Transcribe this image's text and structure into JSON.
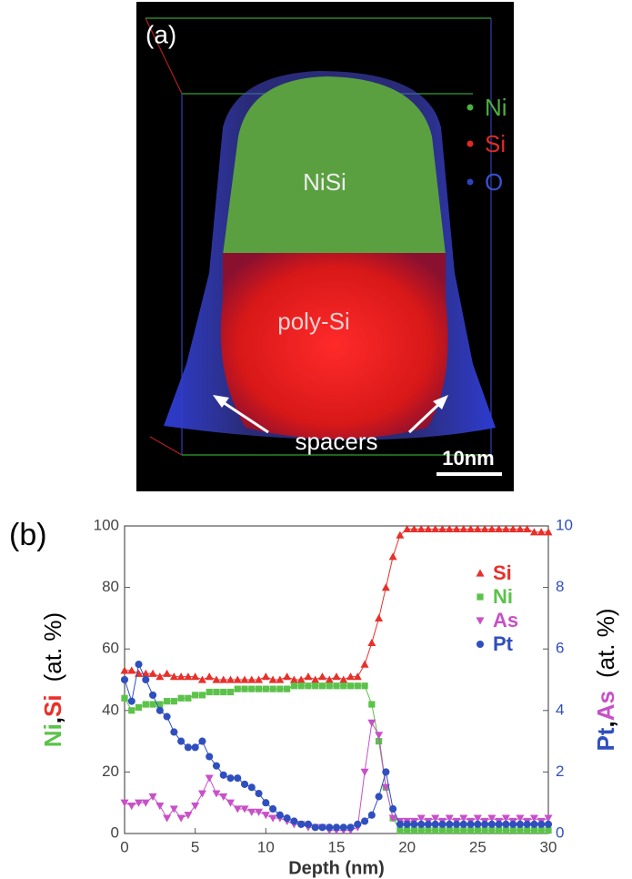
{
  "image_panel": {
    "label": "(a)",
    "legend": [
      "Ni",
      "Si",
      "O"
    ],
    "regions": [
      "NiSi",
      "poly-Si",
      "spacers"
    ],
    "scale_bar": "10nm"
  },
  "chart_data": {
    "type": "line",
    "panel_label": "(b)",
    "x_label": "Depth (nm)",
    "y_label": [
      {
        "text": "Ni",
        "color": "#5cc24a"
      },
      {
        "text": ",",
        "color": "#000000"
      },
      {
        "text": "Si",
        "color": "#e8302a"
      },
      {
        "text": "(at. %)",
        "color": "#000000"
      }
    ],
    "y2_label": [
      {
        "text": "Pt",
        "color": "#2f4fbf"
      },
      {
        "text": ",",
        "color": "#000000"
      },
      {
        "text": "As",
        "color": "#c850c8"
      },
      {
        "text": "(at. %)",
        "color": "#000000"
      }
    ],
    "xlim": [
      0,
      30
    ],
    "xticks": [
      0,
      5,
      10,
      15,
      20,
      25,
      30
    ],
    "ylim": [
      0,
      100
    ],
    "yticks": [
      0,
      20,
      40,
      60,
      80,
      100
    ],
    "y2lim": [
      0,
      10
    ],
    "y2ticks": [
      0,
      2,
      4,
      6,
      8,
      10
    ],
    "y2_tick_color": "#2f4fbf",
    "legend": "upper right",
    "x": [
      0,
      0.5,
      1,
      1.5,
      2,
      2.5,
      3,
      3.5,
      4,
      4.5,
      5,
      5.5,
      6,
      6.5,
      7,
      7.5,
      8,
      8.5,
      9,
      9.5,
      10,
      10.5,
      11,
      11.5,
      12,
      12.5,
      13,
      13.5,
      14,
      14.5,
      15,
      15.5,
      16,
      16.5,
      17,
      17.5,
      18,
      18.5,
      19,
      19.5,
      20,
      20.5,
      21,
      21.5,
      22,
      22.5,
      23,
      23.5,
      24,
      24.5,
      25,
      25.5,
      26,
      26.5,
      27,
      27.5,
      28,
      28.5,
      29,
      29.5,
      30
    ],
    "series": [
      {
        "name": "Si",
        "color": "#e8302a",
        "marker": "triangle-up",
        "values": [
          53,
          53,
          52,
          52,
          52,
          51,
          52,
          51,
          51,
          51,
          51,
          50,
          51,
          50,
          50,
          50,
          50,
          50,
          50,
          50,
          51,
          50,
          50,
          51,
          50,
          50,
          51,
          50,
          51,
          50,
          51,
          50,
          51,
          51,
          55,
          62,
          70,
          80,
          90,
          97,
          99,
          99,
          99,
          99,
          99,
          99,
          99,
          99,
          99,
          99,
          99,
          99,
          99,
          99,
          99,
          99,
          99,
          99,
          98,
          98,
          98
        ]
      },
      {
        "name": "Ni",
        "color": "#5cc24a",
        "marker": "square",
        "values": [
          44,
          40,
          41,
          42,
          42,
          42,
          43,
          43,
          44,
          44,
          45,
          45,
          46,
          46,
          46,
          46,
          47,
          47,
          47,
          47,
          47,
          47,
          47,
          47,
          48,
          48,
          48,
          48,
          48,
          48,
          48,
          48,
          48,
          48,
          48,
          42,
          30,
          15,
          5,
          1,
          1,
          1,
          1,
          1,
          1,
          1,
          1,
          1,
          1,
          1,
          1,
          1,
          1,
          1,
          1,
          1,
          1,
          1,
          1,
          1,
          1
        ]
      },
      {
        "name": "As",
        "color": "#c850c8",
        "marker": "triangle-down",
        "axis": "y2",
        "values": [
          1.0,
          0.9,
          1.0,
          1.0,
          1.2,
          0.9,
          0.5,
          0.8,
          0.5,
          0.6,
          0.9,
          1.3,
          1.8,
          1.3,
          1.2,
          1.0,
          0.8,
          0.8,
          0.7,
          0.7,
          0.6,
          0.5,
          0.5,
          0.4,
          0.3,
          0.3,
          0.2,
          0.2,
          0.2,
          0.1,
          0.1,
          0.1,
          0.1,
          0.2,
          2.0,
          3.6,
          3.2,
          1.5,
          0.5,
          0.4,
          0.4,
          0.4,
          0.5,
          0.4,
          0.5,
          0.4,
          0.5,
          0.4,
          0.5,
          0.4,
          0.5,
          0.4,
          0.5,
          0.4,
          0.5,
          0.4,
          0.5,
          0.4,
          0.5,
          0.4,
          0.5
        ]
      },
      {
        "name": "Pt",
        "color": "#2f4fbf",
        "marker": "circle",
        "axis": "y2",
        "values": [
          5.0,
          4.3,
          5.5,
          5.0,
          4.5,
          4.0,
          3.8,
          3.3,
          3.0,
          2.8,
          2.8,
          3.0,
          2.5,
          2.2,
          1.9,
          1.8,
          1.8,
          1.6,
          1.5,
          1.3,
          1.0,
          0.8,
          0.6,
          0.5,
          0.4,
          0.3,
          0.3,
          0.2,
          0.2,
          0.2,
          0.2,
          0.2,
          0.2,
          0.3,
          0.4,
          0.6,
          1.2,
          2.0,
          0.8,
          0.3,
          0.3,
          0.3,
          0.3,
          0.3,
          0.3,
          0.3,
          0.3,
          0.3,
          0.3,
          0.3,
          0.3,
          0.3,
          0.3,
          0.3,
          0.3,
          0.3,
          0.3,
          0.3,
          0.3,
          0.3,
          0.3
        ]
      }
    ]
  }
}
